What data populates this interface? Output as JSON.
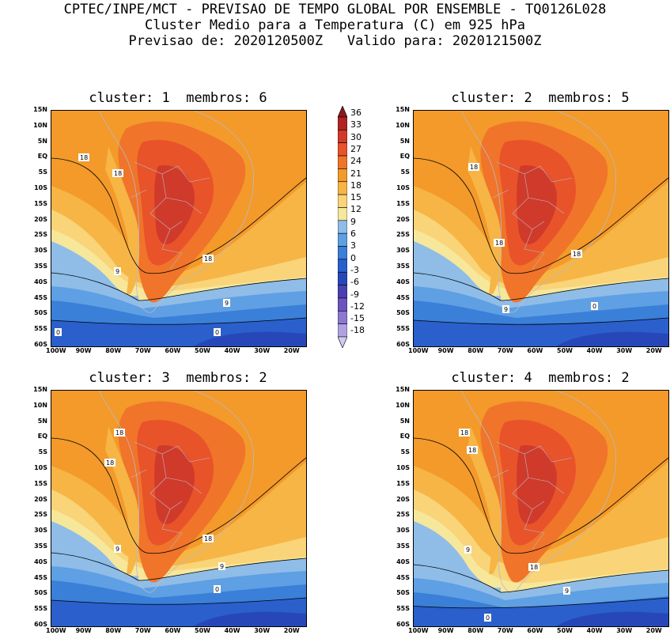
{
  "header": {
    "line1": "CPTEC/INPE/MCT - PREVISAO DE TEMPO GLOBAL POR ENSEMBLE - TQ0126L028",
    "line2": "Cluster Medio para a Temperatura (C) em 925 hPa",
    "line3": "Previsao de: 2020120500Z   Valido para: 2020121500Z"
  },
  "panels": [
    {
      "title": "cluster: 1  membros: 6",
      "contour_labels": [
        "18",
        "18",
        "18",
        "9",
        "9",
        "0",
        "0"
      ]
    },
    {
      "title": "cluster: 2  membros: 5",
      "contour_labels": [
        "18",
        "18",
        "18",
        "9",
        "0"
      ]
    },
    {
      "title": "cluster: 3  membros: 2",
      "contour_labels": [
        "18",
        "18",
        "18",
        "9",
        "9",
        "0"
      ]
    },
    {
      "title": "cluster: 4  membros: 2",
      "contour_labels": [
        "18",
        "18",
        "18",
        "9",
        "9",
        "0"
      ]
    }
  ],
  "lat_ticks": [
    "15N",
    "10N",
    "5N",
    "EQ",
    "5S",
    "10S",
    "15S",
    "20S",
    "25S",
    "30S",
    "35S",
    "40S",
    "45S",
    "50S",
    "55S",
    "60S"
  ],
  "lon_ticks": [
    "100W",
    "90W",
    "80W",
    "70W",
    "60W",
    "50W",
    "40W",
    "30W",
    "20W"
  ],
  "colorbar": {
    "levels": [
      "36",
      "33",
      "30",
      "27",
      "24",
      "21",
      "18",
      "15",
      "12",
      "9",
      "6",
      "3",
      "0",
      "-3",
      "-6",
      "-9",
      "-12",
      "-15",
      "-18"
    ],
    "colors": [
      "#8b1a1a",
      "#b22222",
      "#d03a2a",
      "#e8532a",
      "#f0742a",
      "#f39a2a",
      "#f6b545",
      "#f9d478",
      "#f6e79b",
      "#8fbde8",
      "#5f9fe3",
      "#3a7fd8",
      "#2a5fcc",
      "#2747b8",
      "#4a3fb0",
      "#6a55c0",
      "#8c78d0",
      "#b0a2e0",
      "#d2caf0"
    ]
  },
  "chart_data": {
    "type": "heatmap",
    "variable": "Temperatura (C) em 925 hPa",
    "contour_levels": [
      -18,
      -15,
      -12,
      -9,
      -6,
      -3,
      0,
      3,
      6,
      9,
      12,
      15,
      18,
      21,
      24,
      27,
      30,
      33,
      36
    ],
    "lat_range": [
      "60S",
      "15N"
    ],
    "lon_range": [
      "100W",
      "15W"
    ],
    "clusters": [
      {
        "cluster": 1,
        "membros": 6
      },
      {
        "cluster": 2,
        "membros": 5
      },
      {
        "cluster": 3,
        "membros": 2
      },
      {
        "cluster": 4,
        "membros": 2
      }
    ]
  }
}
